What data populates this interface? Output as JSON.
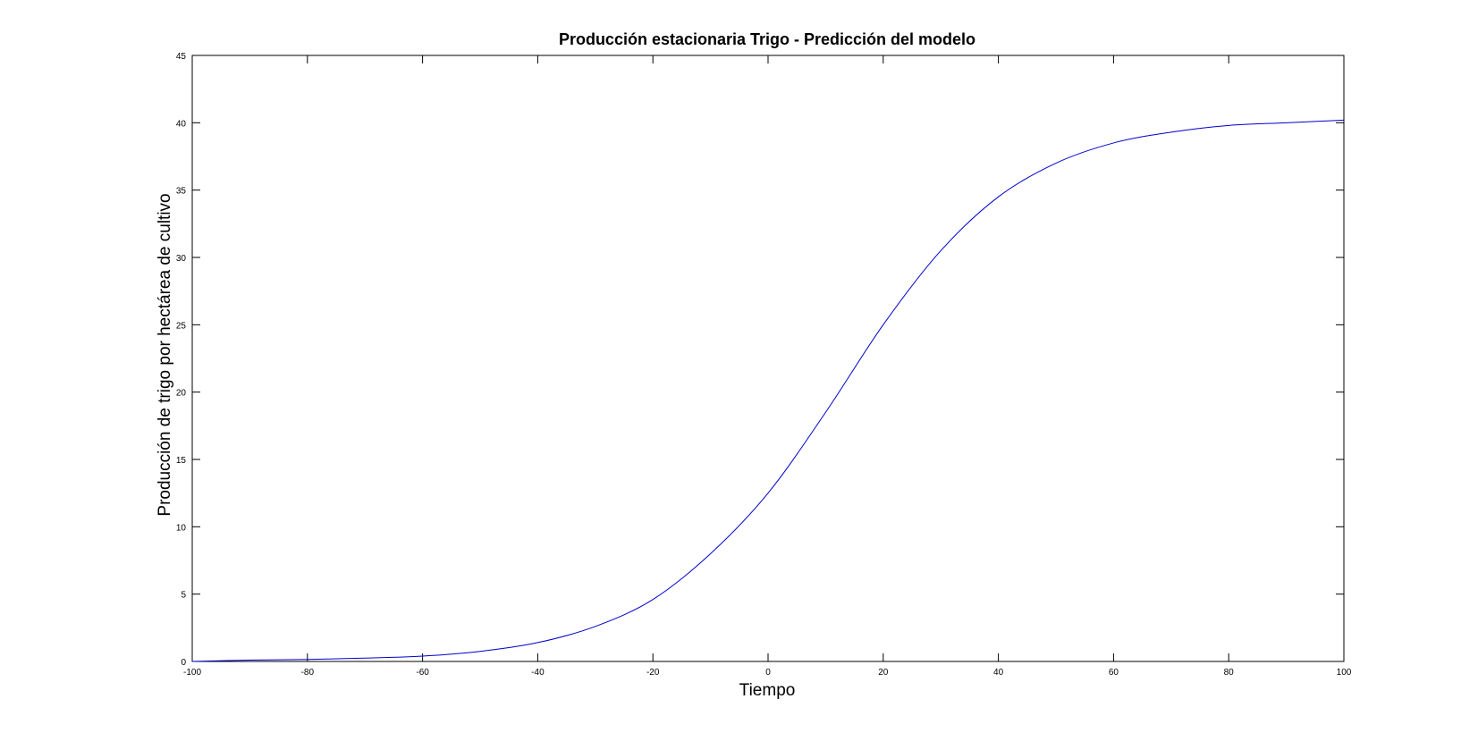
{
  "chart_data": {
    "type": "line",
    "title": "Producción estacionaria Trigo - Predicción del modelo",
    "xlabel": "Tiempo",
    "ylabel": "Producción de trigo por hectárea de cultivo",
    "xlim": [
      -100,
      100
    ],
    "ylim": [
      0,
      45
    ],
    "xticks": [
      -100,
      -80,
      -60,
      -40,
      -20,
      0,
      20,
      40,
      60,
      80,
      100
    ],
    "yticks": [
      0,
      5,
      10,
      15,
      20,
      25,
      30,
      35,
      40,
      45
    ],
    "grid": false,
    "legend": "none",
    "line_color": "#0000cc",
    "series": [
      {
        "x": [
          -100,
          -90,
          -80,
          -70,
          -60,
          -50,
          -40,
          -30,
          -20,
          -10,
          0,
          10,
          20,
          30,
          40,
          50,
          60,
          70,
          80,
          90,
          100
        ],
        "y": [
          0.0,
          0.1,
          0.15,
          0.25,
          0.4,
          0.75,
          1.4,
          2.6,
          4.6,
          8.0,
          12.5,
          18.5,
          25.0,
          30.5,
          34.5,
          37.0,
          38.5,
          39.3,
          39.8,
          40.0,
          40.2
        ]
      }
    ]
  }
}
